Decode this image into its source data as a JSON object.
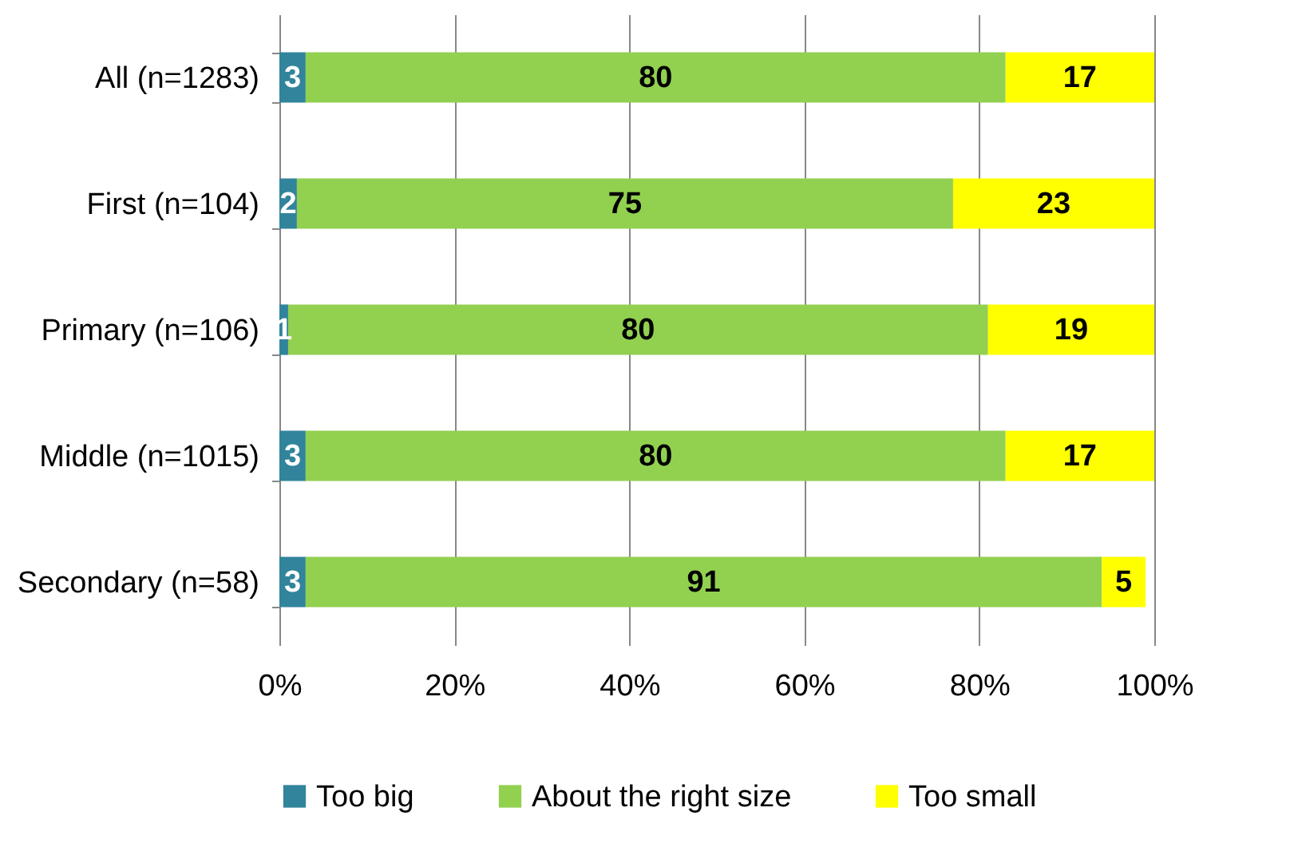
{
  "chart_data": {
    "type": "bar",
    "orientation": "horizontal",
    "stacked": true,
    "data_labels": true,
    "categories": [
      "All (n=1283)",
      "First (n=104)",
      "Primary (n=106)",
      "Middle (n=1015)",
      "Secondary (n=58)"
    ],
    "series": [
      {
        "name": "Too big",
        "color": "#31849b",
        "values": [
          3,
          2,
          1,
          3,
          3
        ]
      },
      {
        "name": "About the right size",
        "color": "#92d050",
        "values": [
          80,
          75,
          80,
          80,
          91
        ]
      },
      {
        "name": "Too small",
        "color": "#ffff00",
        "values": [
          17,
          23,
          19,
          17,
          5
        ]
      }
    ],
    "xlim": [
      0,
      100
    ],
    "xticks": [
      {
        "value": 0,
        "label": "0%"
      },
      {
        "value": 20,
        "label": "20%"
      },
      {
        "value": 40,
        "label": "40%"
      },
      {
        "value": 60,
        "label": "60%"
      },
      {
        "value": 80,
        "label": "80%"
      },
      {
        "value": 100,
        "label": "100%"
      }
    ],
    "grid": "x",
    "legend": "bottom"
  }
}
